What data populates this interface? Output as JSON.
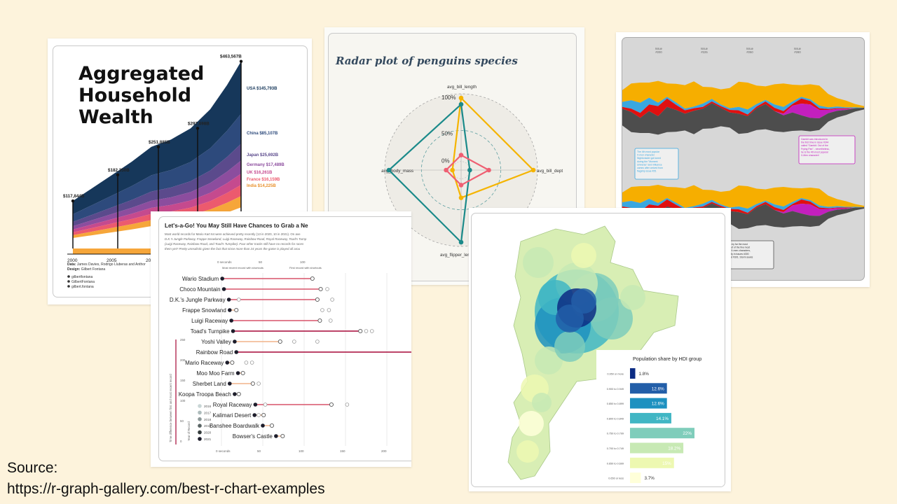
{
  "source": {
    "label": "Source:",
    "url": "https://r-graph-gallery.com/best-r-chart-examples"
  },
  "chart_data": [
    {
      "id": "wealth",
      "type": "area",
      "title": "Aggregated Household Wealth",
      "milestones": [
        {
          "x": 2000,
          "label": "$117,844B",
          "value": 117844
        },
        {
          "x": 2006,
          "label": "$182,350B",
          "value": 182350
        },
        {
          "x": 2010,
          "label": "$251,885B",
          "value": 251885
        },
        {
          "x": 2015,
          "label": "$297,698B",
          "value": 297698
        },
        {
          "x": 2022,
          "label": "$463,567B",
          "value": 463567
        }
      ],
      "x_ticks": [
        "2000",
        "2005",
        "20"
      ],
      "countries": [
        {
          "name": "USA",
          "label": "USA $145,793B",
          "color": "#16375a"
        },
        {
          "name": "China",
          "label": "China $85,107B",
          "color": "#2d4a7c"
        },
        {
          "name": "Japan",
          "label": "Japan $25,692B",
          "color": "#5b4a8c"
        },
        {
          "name": "Germany",
          "label": "Germany $17,489B",
          "color": "#8c4d9e"
        },
        {
          "name": "UK",
          "label": "UK $16,261B",
          "color": "#c54a8e"
        },
        {
          "name": "France",
          "label": "France $16,159B",
          "color": "#ec5a6e"
        },
        {
          "name": "India",
          "label": "India $14,225B",
          "color": "#f6a63a"
        }
      ],
      "credits": [
        {
          "bold": "Data:",
          "text": " James Davies, Rodrigo Lluberas and Anthor"
        },
        {
          "bold": "Design:",
          "text": " Gilbert Fontana"
        },
        {
          "bold": "",
          "text": "gilbertfontana"
        },
        {
          "bold": "",
          "text": "GilbertFontana"
        },
        {
          "bold": "",
          "text": "gilbert.fontana"
        }
      ]
    },
    {
      "id": "mario",
      "type": "scatter",
      "title": "Let's-a-Go! You May Still Have Chances to Grab a Ne",
      "subtitle": [
        "Most world records for Mario Kart 64 were achieved pretty recently (13 in 2020, 10 in 2021). On ave",
        "D.K.'s Jungle Parkway, Frappe Snowland, Luigi Raceway, Rainbow Road, Royal Raceway, Toad's Turnp",
        "(Luigi Raceway, Rainbow Road, and Toad's Turnpike). Four other tracks still have no records for races",
        "them yet? Pretty unrealistic given the fact that since more than 24 years the game is played all arou"
      ],
      "top_ticks": [
        "0 seconds",
        "50",
        "100"
      ],
      "bottom_ticks": [
        "0 seconds",
        "50",
        "100",
        "150",
        "200"
      ],
      "xlim": [
        0,
        230
      ],
      "top_annotations": [
        "Most recent record with shortcuts",
        "First record with shortcuts"
      ],
      "tracks": [
        {
          "name": "Wario Stadium",
          "recent": 1,
          "first": 110
        },
        {
          "name": "Choco Mountain",
          "recent": 3,
          "first": 120,
          "extra": [
            128
          ]
        },
        {
          "name": "D.K.'s Jungle Parkway",
          "recent": 9,
          "first": 116,
          "extra": [
            21,
            134
          ]
        },
        {
          "name": "Frappe Snowland",
          "recent": 10,
          "first": 18,
          "extra": [
            122,
            130
          ]
        },
        {
          "name": "Luigi Raceway",
          "recent": 12,
          "first": 119,
          "extra": [
            132
          ]
        },
        {
          "name": "Toad's Turnpike",
          "recent": 14,
          "first": 168,
          "extra": [
            175,
            182
          ]
        },
        {
          "name": "Yoshi Valley",
          "recent": 16,
          "first": 71,
          "extra": [
            88,
            116
          ]
        },
        {
          "name": "Rainbow Road",
          "recent": 18,
          "first": 230
        },
        {
          "name": "Mario Raceway",
          "recent": 7,
          "first": 13,
          "extra": [
            30,
            37
          ]
        },
        {
          "name": "Moo Moo Farm",
          "recent": 20,
          "first": 26
        },
        {
          "name": "Sherbet Land",
          "recent": 10,
          "first": 38,
          "extra": [
            45
          ]
        },
        {
          "name": "Koopa Troopa Beach",
          "recent": 16,
          "first": 21
        },
        {
          "name": "Royal Raceway",
          "recent": 41,
          "first": 133,
          "extra": [
            53,
            152
          ]
        },
        {
          "name": "Kalimari Desert",
          "recent": 40,
          "first": 51,
          "extra": [
            45
          ]
        },
        {
          "name": "Banshee Boardwalk",
          "recent": 50,
          "first": 61
        },
        {
          "name": "Bowser's Castle",
          "recent": 66,
          "first": 74
        }
      ],
      "legend_title": "Year of Record",
      "legend_years": [
        "2016",
        "2017",
        "2018",
        "2019",
        "2020",
        "2021"
      ],
      "side_label": "Time difference between first and most recent record",
      "side_ticks": [
        "250",
        "200",
        "150",
        "100",
        "50",
        "0"
      ]
    },
    {
      "id": "radar",
      "type": "radar",
      "title": "Radar plot of penguins species",
      "axes": [
        "avg_bill_length",
        "avg_bill_dept",
        "avg_flipper_lengt",
        "avg_body_mass"
      ],
      "rings": [
        "100%",
        "50%",
        "0%"
      ],
      "series": [
        {
          "color": "#f5b400",
          "values": [
            1.0,
            1.0,
            0.3,
            0.0
          ]
        },
        {
          "color": "#1b8a8a",
          "values": [
            0.9,
            0.0,
            1.0,
            1.0
          ]
        },
        {
          "color": "#ef5f72",
          "values": [
            0.1,
            0.3,
            0.1,
            0.1
          ]
        }
      ]
    },
    {
      "id": "streams",
      "type": "area",
      "issues": [
        "Issue #200",
        "Issue #225",
        "Issue #250",
        "Issue #280"
      ],
      "notes": [
        {
          "color": "#3aa7e0",
          "text": [
            "The 4th most popular",
            "X-men character",
            "Nightcrawler got toned",
            "during the \"Moment",
            "Universe\" and influence",
            "cameo after arrived from",
            "flagship issue #25."
          ]
        },
        {
          "color": "#c31fbd",
          "text": [
            "Gambit was introduced in",
            "the first time in issue #244",
            "called \"Gambit: Out of the",
            "Frying Pan\" - nevertheless,",
            "he is the 4th most popular",
            "X-Men character!"
          ]
        },
        {
          "color": "#555555",
          "text": [
            "Storm is by far the most",
            "thought of of the five most",
            "popular X-men characters,",
            "especially in issues #300",
            "#313 and #301. Storm seeks",
            "grit."
          ]
        }
      ]
    },
    {
      "id": "hdi",
      "type": "bar",
      "title": "Population share by HDI group",
      "categories": [
        "0.950 or more",
        "0.900 to 0.949",
        "0.850 to 0.899",
        "0.800 to 0.849",
        "0.750 to 0.799",
        "0.700 to 0.749",
        "0.650 to 0.699",
        "0.650 or less"
      ],
      "values": [
        1.8,
        12.6,
        12.6,
        14.1,
        22,
        18.2,
        15,
        3.7
      ],
      "labels": [
        "1.8%",
        "12.6%",
        "12.6%",
        "14.1%",
        "22%",
        "18.2%",
        "15%",
        "3.7%"
      ],
      "colors": [
        "#0c2c84",
        "#225ea8",
        "#1d91c0",
        "#41b6c4",
        "#7fcdbb",
        "#c7e9b4",
        "#edf8b1",
        "#ffffd9"
      ],
      "xlim": [
        0,
        22
      ]
    }
  ]
}
